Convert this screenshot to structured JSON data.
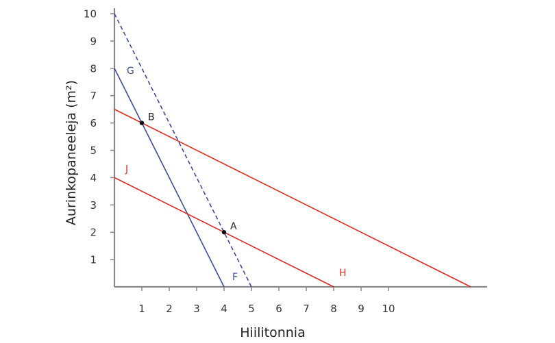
{
  "chart_data": {
    "type": "line",
    "title": "",
    "xlabel": "Hiilitonnia",
    "ylabel": "Aurinkopaneeleja (m²)",
    "xlim": [
      0,
      13.5
    ],
    "ylim": [
      0,
      10
    ],
    "x_ticks": [
      1,
      2,
      3,
      4,
      5,
      6,
      7,
      8,
      9,
      10
    ],
    "y_ticks": [
      1,
      2,
      3,
      4,
      5,
      6,
      7,
      8,
      9,
      10
    ],
    "grid": false,
    "series": [
      {
        "name": "G",
        "end_label": "F",
        "color": "#3a4a9c",
        "style": "solid",
        "points": [
          [
            0,
            8
          ],
          [
            4,
            0
          ]
        ]
      },
      {
        "name": "dashed",
        "color": "#3a4a9c",
        "style": "dashed",
        "points": [
          [
            0,
            10
          ],
          [
            5,
            0
          ]
        ]
      },
      {
        "name": "J",
        "end_label": "H",
        "color": "#e0281e",
        "style": "solid",
        "points": [
          [
            0,
            4
          ],
          [
            8,
            0
          ]
        ]
      },
      {
        "name": "upper",
        "color": "#e0281e",
        "style": "solid",
        "points": [
          [
            0,
            6.5
          ],
          [
            13,
            0
          ]
        ]
      }
    ],
    "labels": [
      {
        "text": "G",
        "color": "#3a4a9c",
        "x": 0.45,
        "y": 7.8
      },
      {
        "text": "F",
        "color": "#3a4a9c",
        "x": 4.3,
        "y": 0.25
      },
      {
        "text": "J",
        "color": "#e0281e",
        "x": 0.4,
        "y": 4.2
      },
      {
        "text": "H",
        "color": "#e0281e",
        "x": 8.2,
        "y": 0.4
      }
    ],
    "points": [
      {
        "name": "A",
        "x": 4,
        "y": 2
      },
      {
        "name": "B",
        "x": 1,
        "y": 6
      }
    ]
  }
}
